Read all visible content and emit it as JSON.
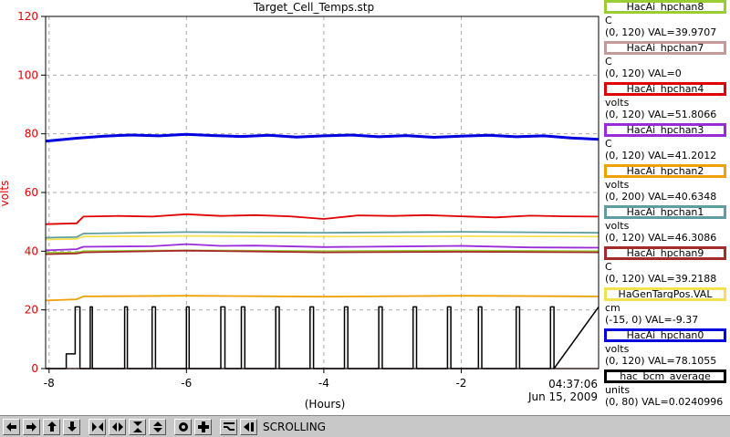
{
  "chart_data": {
    "type": "line",
    "title": "Target_Cell_Temps.stp",
    "ylabel": "volts",
    "xlabel": "(Hours)",
    "xlim": [
      -8.05,
      0
    ],
    "ylim": [
      0,
      120
    ],
    "x_ticks": [
      -8,
      -6,
      -4,
      -2
    ],
    "x_tick_labels": [
      "-8",
      "-6",
      "-4",
      "-2"
    ],
    "y_ticks": [
      0,
      20,
      40,
      60,
      80,
      100,
      120
    ],
    "y_tick_labels": [
      "0",
      "20",
      "40",
      "60",
      "80",
      "100",
      "120"
    ],
    "grid": true,
    "legend_position": "right",
    "time_label": "04:37:06",
    "date_label": "Jun 15, 2009",
    "series": [
      {
        "name": "HacAi_hpchan8",
        "unit": "C",
        "value_text": "(0, 120) VAL=39.9707",
        "color": "#9acd32",
        "x": [
          -8.05,
          -7.6,
          -7.5,
          -6.0,
          -4.0,
          -2.0,
          0.0
        ],
        "y": [
          39.5,
          39.5,
          40.0,
          40.3,
          40.0,
          40.2,
          40.0
        ]
      },
      {
        "name": "HacAi_hpchan7",
        "unit": "C",
        "value_text": "(0, 120) VAL=0",
        "color": "#c49a9a",
        "x": [
          -8.05,
          0.0
        ],
        "y": [
          0,
          0
        ]
      },
      {
        "name": "HacAi_hpchan4",
        "unit": "volts",
        "value_text": "(0, 120) VAL=51.8066",
        "color": "#e00000",
        "x": [
          -8.05,
          -7.6,
          -7.5,
          -7.0,
          -6.5,
          -6.0,
          -5.5,
          -5.0,
          -4.5,
          -4.0,
          -3.5,
          -3.0,
          -2.5,
          -2.0,
          -1.5,
          -1.0,
          -0.5,
          0.0
        ],
        "y": [
          49.2,
          49.5,
          51.8,
          52.0,
          51.8,
          52.6,
          52.0,
          52.3,
          51.9,
          51.0,
          52.2,
          52.0,
          52.3,
          51.9,
          51.5,
          52.1,
          51.9,
          51.8
        ]
      },
      {
        "name": "HacAi_hpchan3",
        "unit": "C",
        "value_text": "(0, 120) VAL=41.2012",
        "color": "#9a2bd8",
        "x": [
          -8.05,
          -7.6,
          -7.5,
          -7.0,
          -6.5,
          -6.0,
          -5.5,
          -5.0,
          -4.0,
          -3.0,
          -2.0,
          -1.0,
          0.0
        ],
        "y": [
          40.3,
          40.7,
          41.5,
          41.6,
          41.7,
          42.4,
          41.8,
          41.9,
          41.4,
          41.6,
          41.8,
          41.3,
          41.2
        ]
      },
      {
        "name": "HacAi_hpchan2",
        "unit": "volts",
        "value_text": "(0, 200) VAL=40.6348",
        "color": "#f0a000",
        "x": [
          -8.05,
          -7.6,
          -7.5,
          -6.0,
          -4.0,
          -2.0,
          0.0
        ],
        "y": [
          23.2,
          23.6,
          24.6,
          24.8,
          24.5,
          24.8,
          24.6
        ]
      },
      {
        "name": "HacAi_hpchan1",
        "unit": "volts",
        "value_text": "(0, 120) VAL=46.3086",
        "color": "#5f9ea0",
        "x": [
          -8.05,
          -7.6,
          -7.5,
          -6.0,
          -4.0,
          -2.0,
          0.0
        ],
        "y": [
          44.6,
          44.8,
          46.0,
          46.5,
          46.3,
          46.6,
          46.3
        ]
      },
      {
        "name": "HacAi_hpchan9",
        "unit": "C",
        "value_text": "(0, 120) VAL=39.2188",
        "color": "#a52a2a",
        "x": [
          -8.05,
          -7.6,
          -7.5,
          -6.0,
          -4.0,
          -2.0,
          0.0
        ],
        "y": [
          39.0,
          39.2,
          39.6,
          40.2,
          39.6,
          39.8,
          39.6
        ]
      },
      {
        "name": "HaGenTargPos.VAL",
        "unit": "cm",
        "value_text": "(-15, 0) VAL=-9.37",
        "color": "#f5e050",
        "x": [
          -8.05,
          -7.6,
          -7.5,
          -6.0,
          -4.0,
          -2.0,
          0.0
        ],
        "y": [
          44.0,
          44.2,
          45.0,
          45.2,
          45.0,
          45.1,
          45.0
        ]
      },
      {
        "name": "HacAi_hpchan0",
        "unit": "volts",
        "value_text": "(0, 120) VAL=78.1055",
        "color": "#0000e0",
        "x": [
          -8.05,
          -7.6,
          -7.2,
          -6.8,
          -6.4,
          -6.0,
          -5.6,
          -5.2,
          -4.8,
          -4.4,
          -4.0,
          -3.6,
          -3.2,
          -2.8,
          -2.4,
          -2.0,
          -1.6,
          -1.2,
          -0.8,
          -0.4,
          0.0
        ],
        "y": [
          77.5,
          78.5,
          79.2,
          79.6,
          79.3,
          79.8,
          79.4,
          79.1,
          79.5,
          78.9,
          79.3,
          79.6,
          79.0,
          79.4,
          78.8,
          79.2,
          79.5,
          79.0,
          79.3,
          78.6,
          78.1
        ]
      },
      {
        "name": "hac_bcm_average",
        "unit": "units",
        "value_text": "(0, 80) VAL=0.0240996",
        "color": "#000000",
        "x": [
          -8.05,
          -7.75,
          -7.75,
          -7.62,
          -7.62,
          -7.55,
          -7.55,
          -7.4,
          -7.4,
          -7.37,
          -7.37,
          -6.9,
          -6.9,
          -6.86,
          -6.86,
          -6.5,
          -6.5,
          -6.45,
          -6.45,
          -6.0,
          -6.0,
          -5.96,
          -5.96,
          -5.5,
          -5.5,
          -5.44,
          -5.44,
          -5.2,
          -5.2,
          -5.15,
          -5.15,
          -4.7,
          -4.7,
          -4.65,
          -4.65,
          -4.2,
          -4.2,
          -4.15,
          -4.15,
          -3.7,
          -3.7,
          -3.65,
          -3.65,
          -3.2,
          -3.2,
          -3.15,
          -3.15,
          -2.7,
          -2.7,
          -2.65,
          -2.65,
          -2.2,
          -2.2,
          -2.15,
          -2.15,
          -1.75,
          -1.75,
          -1.7,
          -1.7,
          -1.2,
          -1.2,
          -1.15,
          -1.15,
          -0.7,
          -0.7,
          -0.65,
          -0.65,
          0.0
        ],
        "y": [
          0,
          0,
          5,
          5,
          21,
          21,
          0,
          0,
          21,
          21,
          0,
          0,
          21,
          21,
          0,
          0,
          21,
          21,
          0,
          0,
          21,
          21,
          0,
          0,
          21,
          21,
          0,
          0,
          21,
          21,
          0,
          0,
          21,
          21,
          0,
          0,
          21,
          21,
          0,
          0,
          21,
          21,
          0,
          0,
          21,
          21,
          0,
          0,
          21,
          21,
          0,
          0,
          21,
          21,
          0,
          0,
          21,
          21,
          0,
          0,
          21,
          21,
          0,
          0,
          21,
          21,
          0,
          21
        ]
      }
    ]
  },
  "toolbar": {
    "status": "SCROLLING",
    "buttons": [
      "arrow-left-icon",
      "arrow-right-icon",
      "arrow-up-icon",
      "arrow-down-icon",
      "zoom-in-x-icon",
      "zoom-out-x-icon",
      "zoom-in-y-icon",
      "zoom-out-y-icon",
      "record-icon",
      "add-icon",
      "scale-icon",
      "jump-end-icon"
    ]
  }
}
